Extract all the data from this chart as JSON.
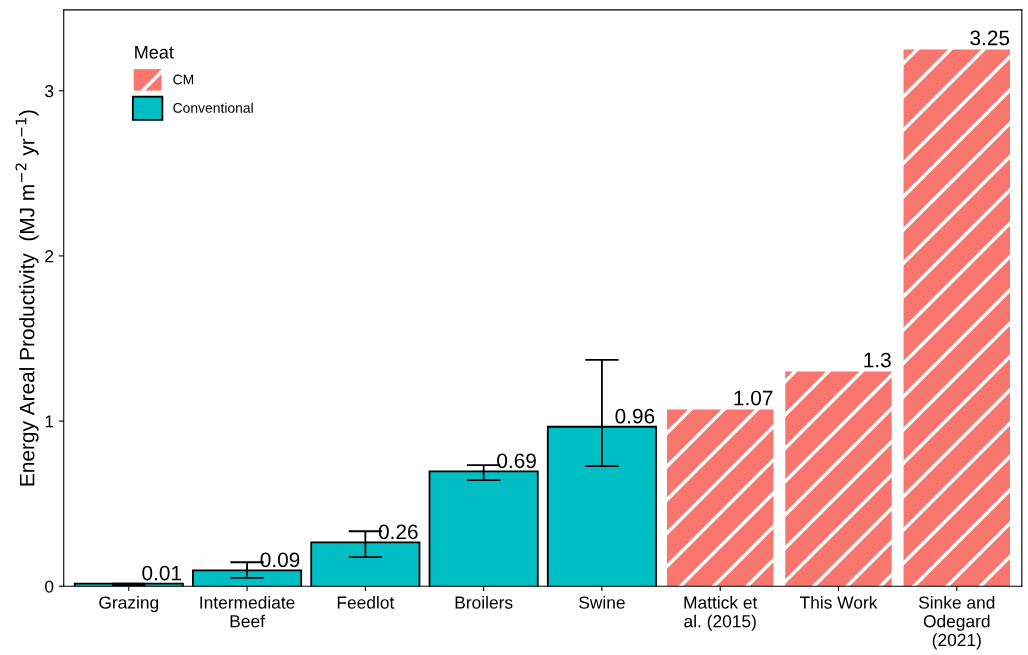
{
  "chart_data": {
    "type": "bar",
    "categories": [
      "Grazing",
      "Intermediate\nBeef",
      "Feedlot",
      "Broilers",
      "Swine",
      "Mattick et\nal. (2015)",
      "This Work",
      "Sinke and\nOdegard\n(2021)"
    ],
    "ylabel": "Energy Areal Productivity  (MJ m$^{−2}$ yr$^{−1}$)",
    "legend_title": "Meat",
    "series": [
      {
        "name": "CM",
        "color": "#f8766d",
        "values": [
          null,
          null,
          null,
          null,
          null,
          1.07,
          1.3,
          3.25
        ],
        "errors": [
          null,
          null,
          null,
          null,
          null,
          null,
          null,
          null
        ]
      },
      {
        "name": "Conventional",
        "color": "#00bfc4",
        "values": [
          0.01,
          0.09,
          0.26,
          0.69,
          0.96,
          null,
          null,
          null
        ],
        "errors": [
          [
            0.005,
            0.015
          ],
          [
            0.05,
            0.145
          ],
          [
            0.176,
            0.333
          ],
          [
            0.642,
            0.733
          ],
          [
            0.727,
            1.37
          ],
          null,
          null,
          null
        ]
      }
    ],
    "data_labels": true,
    "ylim": [
      0,
      3.49
    ],
    "yticks": [
      0,
      1,
      2,
      3
    ],
    "grid": false,
    "legend": "top left"
  }
}
